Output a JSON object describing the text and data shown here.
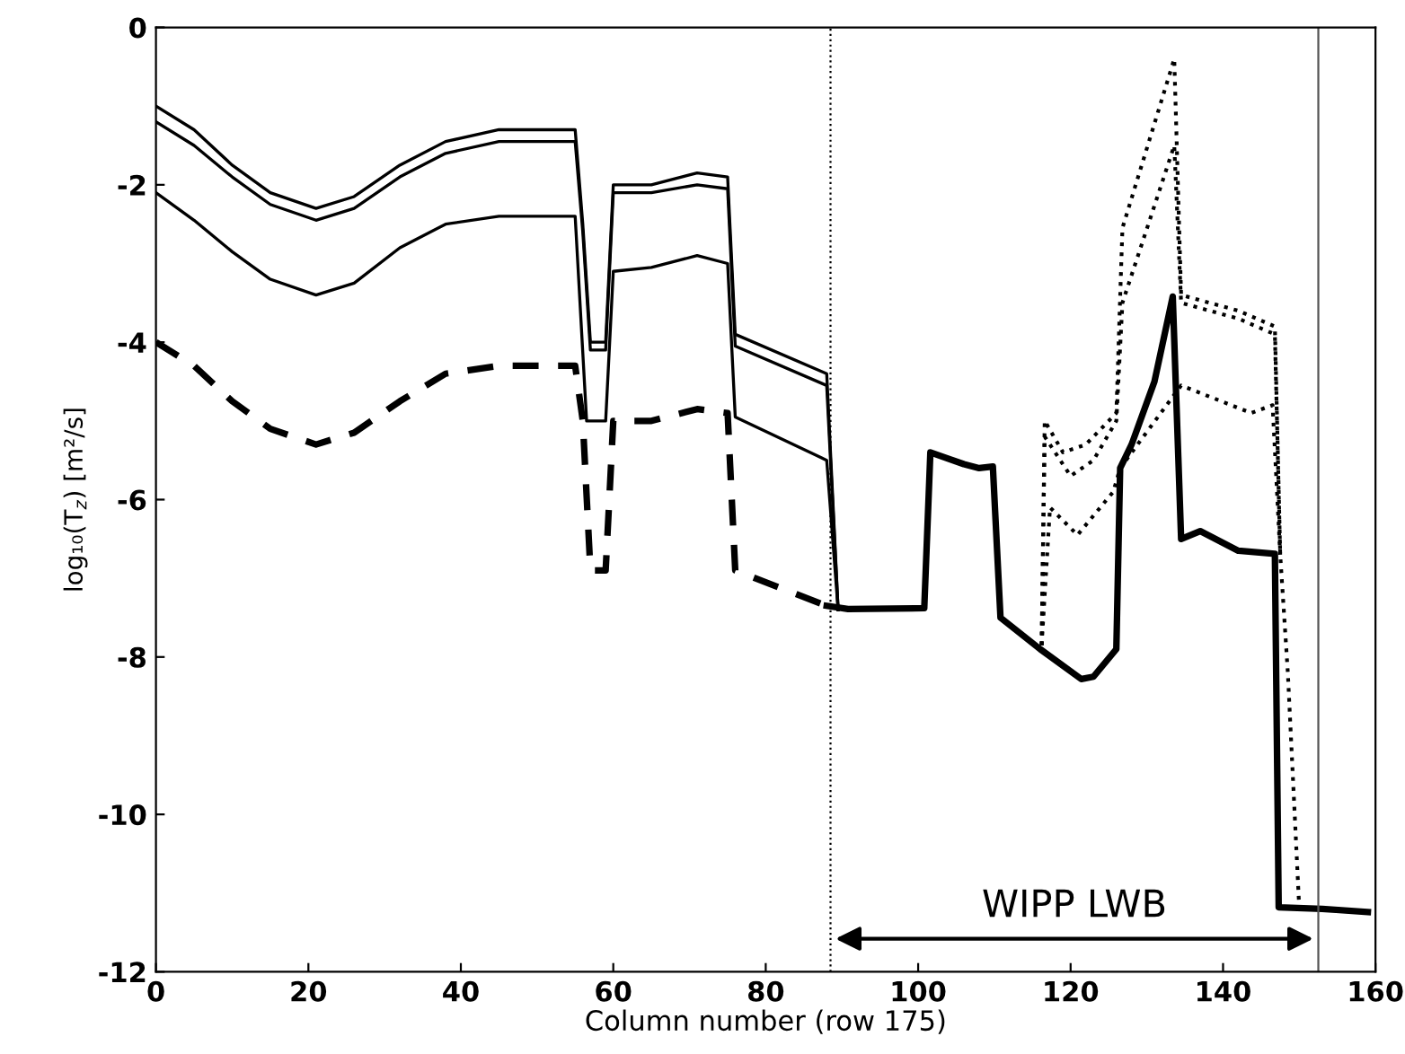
{
  "chart_data": {
    "type": "line",
    "xlabel": "Column number (row 175)",
    "ylabel": "log₁₀(T$_{z}$) [m²/s]",
    "xlim": [
      0,
      160
    ],
    "ylim": [
      -12,
      0
    ],
    "xticks": [
      0,
      20,
      40,
      60,
      80,
      100,
      120,
      140,
      160
    ],
    "yticks": [
      -12,
      -10,
      -8,
      -6,
      -4,
      -2,
      0
    ],
    "grid": false,
    "legend": false,
    "series": [
      {
        "color": "#000000",
        "line_style": "solid",
        "x": [
          0,
          5,
          10,
          15,
          21,
          26,
          32,
          38,
          45,
          50,
          55,
          56,
          57,
          59,
          60,
          65,
          71,
          75,
          76,
          88,
          89.5
        ],
        "values": [
          -1.0,
          -1.3,
          -1.75,
          -2.1,
          -2.3,
          -2.15,
          -1.75,
          -1.45,
          -1.3,
          -1.3,
          -1.3,
          -2.5,
          -4.0,
          -4.0,
          -2.0,
          -2.0,
          -1.85,
          -1.9,
          -3.9,
          -4.4,
          -7.4
        ]
      },
      {
        "color": "#000000",
        "line_style": "solid",
        "x": [
          0,
          5,
          10,
          15,
          21,
          26,
          32,
          38,
          45,
          50,
          55,
          56,
          57,
          59,
          60,
          65,
          71,
          75,
          76,
          88,
          89.5
        ],
        "values": [
          -1.2,
          -1.5,
          -1.9,
          -2.25,
          -2.45,
          -2.3,
          -1.9,
          -1.6,
          -1.45,
          -1.45,
          -1.45,
          -2.6,
          -4.1,
          -4.1,
          -2.1,
          -2.1,
          -2.0,
          -2.05,
          -4.05,
          -4.55,
          -7.4
        ]
      },
      {
        "color": "#000000",
        "line_style": "solid",
        "x": [
          0,
          5,
          10,
          15,
          21,
          26,
          32,
          38,
          45,
          50,
          55,
          56.5,
          59,
          60,
          65,
          71,
          75,
          76,
          88,
          89.5
        ],
        "values": [
          -2.1,
          -2.45,
          -2.85,
          -3.2,
          -3.4,
          -3.25,
          -2.8,
          -2.5,
          -2.4,
          -2.4,
          -2.4,
          -5.0,
          -5.0,
          -3.1,
          -3.05,
          -2.9,
          -3.0,
          -4.95,
          -5.5,
          -7.4
        ]
      },
      {
        "color": "#000000",
        "line_style": "dashed",
        "x": [
          0,
          5,
          10,
          15,
          21,
          26,
          32,
          38,
          45,
          50,
          55,
          56,
          57,
          59,
          60,
          65,
          71,
          75,
          76,
          88
        ],
        "values": [
          -4.0,
          -4.3,
          -4.75,
          -5.1,
          -5.3,
          -5.15,
          -4.75,
          -4.4,
          -4.3,
          -4.3,
          -4.3,
          -5.0,
          -6.9,
          -6.9,
          -5.0,
          -5.0,
          -4.85,
          -4.9,
          -6.9,
          -7.35
        ]
      },
      {
        "color": "#000000",
        "line_style": "dotted",
        "x": [
          116.2,
          116.6,
          119,
          122,
          126,
          126.8,
          133.6,
          134.5,
          142,
          146.8,
          147.5,
          148.5,
          150
        ],
        "values": [
          -7.85,
          -5.0,
          -5.4,
          -5.3,
          -4.9,
          -2.55,
          -0.4,
          -3.4,
          -3.6,
          -3.8,
          -6.7,
          -8.2,
          -11.2
        ]
      },
      {
        "color": "#000000",
        "line_style": "dotted",
        "x": [
          116.2,
          116.6,
          120,
          123,
          126,
          126.8,
          133.6,
          134.5,
          142,
          146.8,
          147.5
        ],
        "values": [
          -7.85,
          -5.2,
          -5.7,
          -5.5,
          -5.0,
          -3.5,
          -1.5,
          -3.5,
          -3.7,
          -3.9,
          -6.7
        ]
      },
      {
        "color": "#000000",
        "line_style": "dotted",
        "x": [
          116.2,
          117.3,
          120.9,
          125.6,
          126.5,
          134.5,
          143.7,
          146.5,
          147.5
        ],
        "values": [
          -7.85,
          -6.1,
          -6.45,
          -5.9,
          -5.6,
          -4.55,
          -4.9,
          -4.8,
          -6.7
        ]
      },
      {
        "color": "#000000",
        "line_style": "solid",
        "x": [
          88,
          90.8,
          100.8,
          101.6,
          106,
          108,
          109.8,
          110.8,
          116,
          121.4,
          123,
          126,
          126.5,
          128,
          131,
          133.4,
          134.5,
          137,
          142,
          146.8,
          147.3,
          153,
          159
        ],
        "values": [
          -7.35,
          -7.39,
          -7.38,
          -5.4,
          -5.55,
          -5.6,
          -5.58,
          -7.5,
          -7.9,
          -8.28,
          -8.25,
          -7.9,
          -5.6,
          -5.3,
          -4.5,
          -3.42,
          -6.5,
          -6.4,
          -6.65,
          -6.69,
          -11.18,
          -11.2,
          -11.24
        ]
      }
    ],
    "ref_lines": [
      {
        "axis": "x",
        "value": 88.5,
        "line_style": "dotted",
        "color": "#000000"
      },
      {
        "axis": "x",
        "value": 152.5,
        "line_style": "solid",
        "color": "#555555"
      }
    ],
    "annotations": [
      "WIPP LWB"
    ]
  }
}
